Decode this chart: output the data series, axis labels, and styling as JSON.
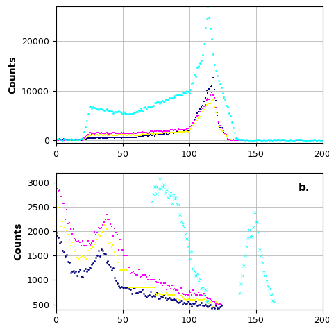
{
  "panel_a": {
    "xlim": [
      0,
      200
    ],
    "ylim": [
      -500,
      27000
    ],
    "yticks": [
      0,
      10000,
      20000
    ],
    "xticks": [
      0,
      50,
      100,
      150,
      200
    ],
    "ylabel": "Counts",
    "grid": true,
    "series": [
      {
        "color": "#00FFFF",
        "marker": "o",
        "markersize": 2.0,
        "type": "cyan"
      },
      {
        "color": "#FF00FF",
        "marker": "s",
        "markersize": 2.0,
        "type": "magenta"
      },
      {
        "color": "#FFFF00",
        "marker": "s",
        "markersize": 2.0,
        "type": "yellow"
      },
      {
        "color": "#000080",
        "marker": "s",
        "markersize": 2.0,
        "type": "navy"
      }
    ]
  },
  "panel_b": {
    "xlim": [
      0,
      200
    ],
    "ylim": [
      400,
      3200
    ],
    "yticks": [
      500,
      1000,
      1500,
      2000,
      2500,
      3000
    ],
    "xticks": [
      0,
      50,
      100,
      150,
      200
    ],
    "ylabel": "Counts",
    "label": "b.",
    "grid": true,
    "series": [
      {
        "color": "#00FFFF",
        "marker": "x",
        "markersize": 3.0,
        "type": "cyan"
      },
      {
        "color": "#FF00FF",
        "marker": "s",
        "markersize": 2.0,
        "type": "magenta"
      },
      {
        "color": "#FFFF00",
        "marker": "s",
        "markersize": 2.0,
        "type": "yellow"
      },
      {
        "color": "#000080",
        "marker": "o",
        "markersize": 2.0,
        "type": "navy"
      }
    ]
  },
  "background_color": "#FFFFFF",
  "figure_size": [
    4.74,
    4.74
  ],
  "dpi": 100
}
